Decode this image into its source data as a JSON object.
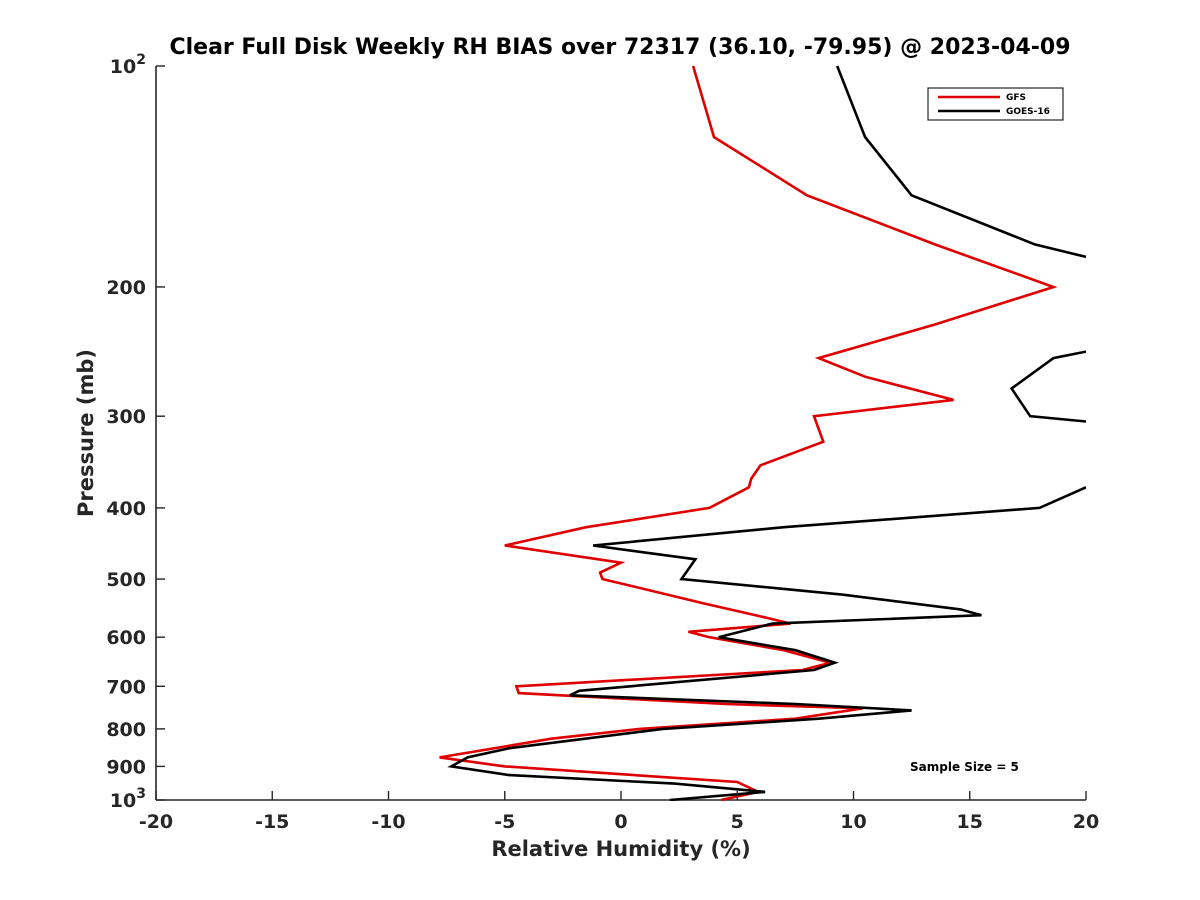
{
  "chart_data": {
    "type": "line",
    "title": "Clear Full Disk Weekly RH BIAS over 72317 (36.10, -79.95) @ 2023-04-09",
    "xlabel": "Relative Humidity (%)",
    "ylabel": "Pressure (mb)",
    "xlim": [
      -20,
      20
    ],
    "ylim": [
      1000,
      100
    ],
    "y_scale": "log",
    "y_reversed": true,
    "grid": false,
    "legend_position": "top-right",
    "x_ticks": [
      {
        "value": -20,
        "label": "-20"
      },
      {
        "value": -15,
        "label": "-15"
      },
      {
        "value": -10,
        "label": "-10"
      },
      {
        "value": -5,
        "label": "-5"
      },
      {
        "value": 0,
        "label": "0"
      },
      {
        "value": 5,
        "label": "5"
      },
      {
        "value": 10,
        "label": "10"
      },
      {
        "value": 15,
        "label": "15"
      },
      {
        "value": 20,
        "label": "20"
      }
    ],
    "y_ticks": [
      {
        "value": 100,
        "label": "10",
        "sup": "2"
      },
      {
        "value": 200,
        "label": "200"
      },
      {
        "value": 300,
        "label": "300"
      },
      {
        "value": 400,
        "label": "400"
      },
      {
        "value": 500,
        "label": "500"
      },
      {
        "value": 600,
        "label": "600"
      },
      {
        "value": 700,
        "label": "700"
      },
      {
        "value": 800,
        "label": "800"
      },
      {
        "value": 900,
        "label": "900"
      },
      {
        "value": 1000,
        "label": "10",
        "sup": "3"
      }
    ],
    "annotation": "Sample Size = 5",
    "series": [
      {
        "name": "GFS",
        "color": "#e00000",
        "segments": [
          [
            [
              3.1,
              100
            ],
            [
              4.0,
              125
            ],
            [
              8.0,
              150
            ],
            [
              13.5,
              175
            ],
            [
              18.6,
              200
            ],
            [
              13.5,
              225
            ],
            [
              8.5,
              250
            ],
            [
              10.5,
              265
            ],
            [
              14.3,
              285
            ],
            [
              8.3,
              300
            ],
            [
              8.7,
              325
            ],
            [
              6.0,
              350
            ],
            [
              5.6,
              365
            ],
            [
              5.5,
              375
            ],
            [
              3.8,
              400
            ],
            [
              -1.5,
              425
            ],
            [
              -5.0,
              450
            ],
            [
              0.0,
              475
            ],
            [
              -0.9,
              490
            ],
            [
              -0.8,
              500
            ],
            [
              3.6,
              540
            ],
            [
              6.3,
              565
            ],
            [
              7.3,
              575
            ],
            [
              2.9,
              590
            ],
            [
              3.8,
              600
            ],
            [
              7.0,
              625
            ],
            [
              9.0,
              650
            ],
            [
              7.8,
              665
            ],
            [
              -4.5,
              700
            ],
            [
              -4.4,
              715
            ],
            [
              4.5,
              740
            ],
            [
              10.4,
              750
            ],
            [
              7.5,
              775
            ],
            [
              0.8,
              800
            ],
            [
              -3.0,
              825
            ],
            [
              -7.8,
              875
            ],
            [
              -5.0,
              900
            ],
            [
              5.0,
              945
            ],
            [
              5.9,
              975
            ],
            [
              4.3,
              1000
            ]
          ]
        ]
      },
      {
        "name": "GOES-16",
        "color": "#000000",
        "segments": [
          [
            [
              9.3,
              100
            ],
            [
              10.5,
              125
            ],
            [
              12.5,
              150
            ],
            [
              17.8,
              175
            ],
            [
              20.0,
              182
            ]
          ],
          [
            [
              20.0,
              245
            ],
            [
              18.6,
              250
            ],
            [
              16.8,
              275
            ],
            [
              17.6,
              300
            ],
            [
              20.0,
              305
            ]
          ],
          [
            [
              20.0,
              375
            ],
            [
              18.0,
              400
            ],
            [
              7.0,
              425
            ],
            [
              -1.2,
              450
            ],
            [
              3.2,
              470
            ],
            [
              2.6,
              500
            ],
            [
              9.5,
              525
            ],
            [
              14.6,
              550
            ],
            [
              15.5,
              560
            ],
            [
              6.5,
              575
            ],
            [
              4.2,
              600
            ],
            [
              7.5,
              625
            ],
            [
              9.2,
              650
            ],
            [
              8.3,
              665
            ],
            [
              -1.8,
              710
            ],
            [
              -2.2,
              720
            ],
            [
              7.5,
              740
            ],
            [
              12.5,
              755
            ],
            [
              8.5,
              775
            ],
            [
              1.8,
              800
            ],
            [
              -4.8,
              850
            ],
            [
              -6.6,
              875
            ],
            [
              -7.3,
              900
            ],
            [
              -4.8,
              925
            ],
            [
              2.3,
              950
            ],
            [
              6.2,
              975
            ],
            [
              2.1,
              1000
            ]
          ]
        ]
      }
    ]
  }
}
